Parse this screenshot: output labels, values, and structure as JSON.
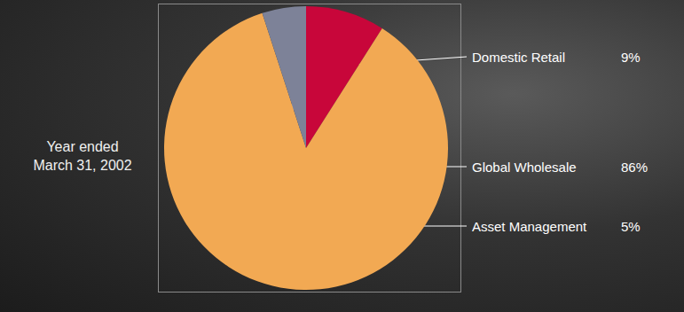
{
  "chart_data": {
    "type": "pie",
    "title": "Year ended\nMarch 31, 2002",
    "categories": [
      "Domestic Retail",
      "Global Wholesale",
      "Asset Management"
    ],
    "values": [
      9,
      86,
      5
    ],
    "value_labels": [
      "9%",
      "86%",
      "5%"
    ],
    "colors": [
      "#c8063a",
      "#f2a953",
      "#7d8298"
    ],
    "data_labels": true
  }
}
